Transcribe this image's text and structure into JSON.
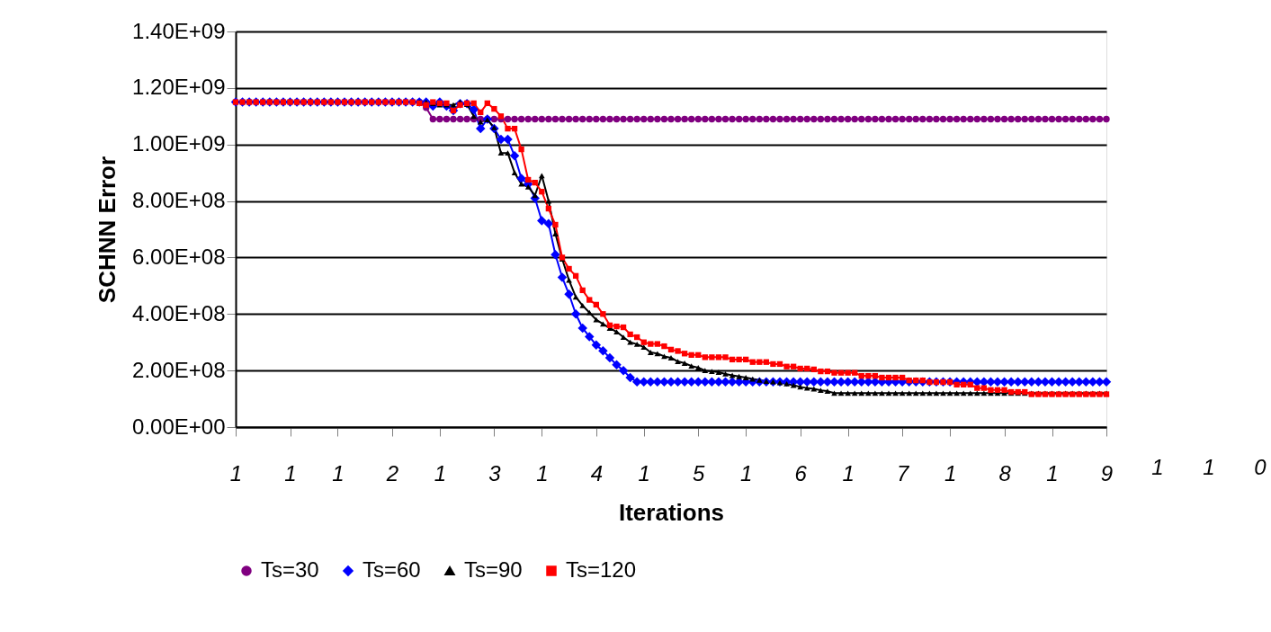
{
  "chart_data": {
    "type": "line",
    "xlabel": "Iterations",
    "ylabel": "SCHNN Error",
    "categories": [
      "1",
      null,
      null,
      null,
      null,
      null,
      null,
      null,
      "1",
      null,
      null,
      null,
      null,
      null,
      null,
      "1",
      null,
      null,
      null,
      null,
      null,
      null,
      null,
      "2",
      null,
      null,
      null,
      null,
      null,
      null,
      "1",
      null,
      null,
      null,
      null,
      null,
      null,
      null,
      "3",
      null,
      null,
      null,
      null,
      null,
      null,
      "1",
      null,
      null,
      null,
      null,
      null,
      null,
      null,
      "4",
      null,
      null,
      null,
      null,
      null,
      null,
      "1",
      null,
      null,
      null,
      null,
      null,
      null,
      null,
      "5",
      null,
      null,
      null,
      null,
      null,
      null,
      "1",
      null,
      null,
      null,
      null,
      null,
      null,
      null,
      "6",
      null,
      null,
      null,
      null,
      null,
      null,
      "1",
      null,
      null,
      null,
      null,
      null,
      null,
      null,
      "7",
      null,
      null,
      null,
      null,
      null,
      null,
      "1",
      null,
      null,
      null,
      null,
      null,
      null,
      null,
      "8",
      null,
      null,
      null,
      null,
      null,
      null,
      "1",
      null,
      null,
      null,
      null,
      null,
      null,
      null,
      "9"
    ],
    "series": [
      {
        "name": "Ts=30",
        "color": "#800080",
        "marker": "circle",
        "values": [
          null,
          null,
          null,
          null,
          null,
          null,
          null,
          null,
          null,
          null,
          null,
          null,
          null,
          null,
          null,
          null,
          null,
          null,
          null,
          null,
          null,
          null,
          null,
          null,
          null,
          null,
          null,
          1150000000.0,
          1130000000.0,
          1090000000.0,
          1090000000.0,
          1090000000.0,
          1090000000.0,
          1090000000.0,
          1090000000.0,
          1090000000.0,
          1090000000.0,
          1090000000.0,
          1090000000.0,
          1090000000.0,
          1090000000.0,
          1090000000.0,
          1090000000.0,
          1090000000.0,
          1090000000.0,
          1090000000.0,
          1090000000.0,
          1090000000.0,
          1090000000.0,
          1090000000.0,
          1090000000.0,
          1090000000.0,
          1090000000.0,
          1090000000.0,
          1090000000.0,
          1090000000.0,
          1090000000.0,
          1090000000.0,
          1090000000.0,
          1090000000.0,
          1090000000.0,
          1090000000.0,
          1090000000.0,
          1090000000.0,
          1090000000.0,
          1090000000.0,
          1090000000.0,
          1090000000.0,
          1090000000.0,
          1090000000.0,
          1090000000.0,
          1090000000.0,
          1090000000.0,
          1090000000.0,
          1090000000.0,
          1090000000.0,
          1090000000.0,
          1090000000.0,
          1090000000.0,
          1090000000.0,
          1090000000.0,
          1090000000.0,
          1090000000.0,
          1090000000.0,
          1090000000.0,
          1090000000.0,
          1090000000.0,
          1090000000.0,
          1090000000.0,
          1090000000.0,
          1090000000.0,
          1090000000.0,
          1090000000.0,
          1090000000.0,
          1090000000.0,
          1090000000.0,
          1090000000.0,
          1090000000.0,
          1090000000.0,
          1090000000.0,
          1090000000.0,
          1090000000.0,
          1090000000.0,
          1090000000.0,
          1090000000.0,
          1090000000.0,
          1090000000.0,
          1090000000.0,
          1090000000.0,
          1090000000.0,
          1090000000.0,
          1090000000.0,
          1090000000.0,
          1090000000.0,
          1090000000.0,
          1090000000.0,
          1090000000.0,
          1090000000.0,
          1090000000.0,
          1090000000.0,
          1090000000.0,
          1090000000.0,
          1090000000.0,
          1090000000.0,
          1090000000.0,
          1090000000.0,
          1090000000.0,
          1090000000.0,
          1090000000.0
        ]
      },
      {
        "name": "Ts=60",
        "color": "#0000ff",
        "marker": "diamond",
        "values": [
          1150000000.0,
          1150000000.0,
          1150000000.0,
          1150000000.0,
          1150000000.0,
          1150000000.0,
          1150000000.0,
          1150000000.0,
          1150000000.0,
          1150000000.0,
          1150000000.0,
          1150000000.0,
          1150000000.0,
          1150000000.0,
          1150000000.0,
          1150000000.0,
          1150000000.0,
          1150000000.0,
          1150000000.0,
          1150000000.0,
          1150000000.0,
          1150000000.0,
          1150000000.0,
          1150000000.0,
          1150000000.0,
          1150000000.0,
          1150000000.0,
          1150000000.0,
          1150000000.0,
          1136000000.0,
          1150000000.0,
          1136000000.0,
          1120000000.0,
          1145000000.0,
          1145000000.0,
          1123000000.0,
          1056000000.0,
          1090000000.0,
          1056000000.0,
          1018000000.0,
          1018000000.0,
          960000000.0,
          880000000.0,
          860000000.0,
          810000000.0,
          730000000.0,
          720000000.0,
          610000000.0,
          530000000.0,
          470000000.0,
          400000000.0,
          350000000.0,
          320000000.0,
          290000000.0,
          270000000.0,
          245000000.0,
          220000000.0,
          200000000.0,
          175000000.0,
          160000000.0,
          160000000.0,
          160000000.0,
          160000000.0,
          160000000.0,
          160000000.0,
          160000000.0,
          160000000.0,
          160000000.0,
          160000000.0,
          160000000.0,
          160000000.0,
          160000000.0,
          160000000.0,
          160000000.0,
          160000000.0,
          160000000.0,
          160000000.0,
          160000000.0,
          160000000.0,
          160000000.0,
          160000000.0,
          160000000.0,
          160000000.0,
          160000000.0,
          160000000.0,
          160000000.0,
          160000000.0,
          160000000.0,
          160000000.0,
          160000000.0,
          160000000.0,
          160000000.0,
          160000000.0,
          160000000.0,
          160000000.0,
          160000000.0,
          160000000.0,
          160000000.0,
          160000000.0,
          160000000.0,
          160000000.0,
          160000000.0,
          160000000.0,
          160000000.0,
          160000000.0,
          160000000.0,
          160000000.0,
          160000000.0,
          160000000.0,
          160000000.0,
          160000000.0,
          160000000.0,
          160000000.0,
          160000000.0,
          160000000.0,
          160000000.0,
          160000000.0,
          160000000.0,
          160000000.0,
          160000000.0,
          160000000.0,
          160000000.0,
          160000000.0,
          160000000.0,
          160000000.0,
          160000000.0,
          160000000.0,
          160000000.0,
          160000000.0
        ]
      },
      {
        "name": "Ts=90",
        "color": "#000000",
        "marker": "triangle",
        "values": [
          null,
          null,
          null,
          null,
          null,
          null,
          null,
          null,
          null,
          null,
          null,
          null,
          null,
          null,
          null,
          null,
          null,
          null,
          null,
          null,
          null,
          null,
          null,
          null,
          null,
          null,
          null,
          1150000000.0,
          1150000000.0,
          1145000000.0,
          1140000000.0,
          1140000000.0,
          1140000000.0,
          1150000000.0,
          1142000000.0,
          1100000000.0,
          1080000000.0,
          1088000000.0,
          1060000000.0,
          970000000.0,
          970000000.0,
          900000000.0,
          860000000.0,
          850000000.0,
          820000000.0,
          890000000.0,
          800000000.0,
          684000000.0,
          595000000.0,
          520000000.0,
          460000000.0,
          430000000.0,
          405000000.0,
          380000000.0,
          365000000.0,
          350000000.0,
          337000000.0,
          318000000.0,
          300000000.0,
          293000000.0,
          283000000.0,
          264000000.0,
          260000000.0,
          250000000.0,
          245000000.0,
          232000000.0,
          226000000.0,
          216000000.0,
          210000000.0,
          200000000.0,
          197000000.0,
          194000000.0,
          188000000.0,
          183000000.0,
          179000000.0,
          175000000.0,
          170000000.0,
          166000000.0,
          162000000.0,
          160000000.0,
          157000000.0,
          153000000.0,
          148000000.0,
          142000000.0,
          138000000.0,
          135000000.0,
          130000000.0,
          127000000.0,
          120000000.0,
          120000000.0,
          120000000.0,
          120000000.0,
          120000000.0,
          120000000.0,
          120000000.0,
          120000000.0,
          120000000.0,
          120000000.0,
          120000000.0,
          120000000.0,
          120000000.0,
          120000000.0,
          120000000.0,
          120000000.0,
          120000000.0,
          120000000.0,
          120000000.0,
          120000000.0,
          120000000.0,
          120000000.0,
          120000000.0,
          120000000.0,
          120000000.0,
          120000000.0,
          120000000.0,
          120000000.0,
          120000000.0,
          120000000.0,
          120000000.0,
          120000000.0,
          120000000.0,
          120000000.0,
          120000000.0,
          120000000.0,
          120000000.0,
          120000000.0,
          120000000.0,
          120000000.0,
          120000000.0
        ]
      },
      {
        "name": "Ts=120",
        "color": "#ff0000",
        "marker": "square",
        "values": [
          1150000000.0,
          1150000000.0,
          1150000000.0,
          1150000000.0,
          1150000000.0,
          1150000000.0,
          1150000000.0,
          1150000000.0,
          1150000000.0,
          1150000000.0,
          1150000000.0,
          1150000000.0,
          1150000000.0,
          1150000000.0,
          1150000000.0,
          1150000000.0,
          1150000000.0,
          1150000000.0,
          1150000000.0,
          1150000000.0,
          1150000000.0,
          1150000000.0,
          1150000000.0,
          1150000000.0,
          1150000000.0,
          1150000000.0,
          1150000000.0,
          1146000000.0,
          1140000000.0,
          1150000000.0,
          1146000000.0,
          1146000000.0,
          1120000000.0,
          1140000000.0,
          1146000000.0,
          1146000000.0,
          1114000000.0,
          1146000000.0,
          1126000000.0,
          1100000000.0,
          1056000000.0,
          1056000000.0,
          983000000.0,
          875000000.0,
          865000000.0,
          833000000.0,
          773000000.0,
          716000000.0,
          600000000.0,
          560000000.0,
          535000000.0,
          484000000.0,
          450000000.0,
          433000000.0,
          400000000.0,
          360000000.0,
          356000000.0,
          353000000.0,
          328000000.0,
          318000000.0,
          300000000.0,
          294000000.0,
          294000000.0,
          286000000.0,
          274000000.0,
          269000000.0,
          260000000.0,
          255000000.0,
          255000000.0,
          247000000.0,
          247000000.0,
          247000000.0,
          247000000.0,
          239000000.0,
          239000000.0,
          239000000.0,
          230000000.0,
          230000000.0,
          230000000.0,
          223000000.0,
          223000000.0,
          214000000.0,
          214000000.0,
          207000000.0,
          207000000.0,
          204000000.0,
          197000000.0,
          197000000.0,
          192000000.0,
          192000000.0,
          192000000.0,
          192000000.0,
          181000000.0,
          181000000.0,
          181000000.0,
          175000000.0,
          175000000.0,
          175000000.0,
          175000000.0,
          165000000.0,
          165000000.0,
          165000000.0,
          159000000.0,
          159000000.0,
          159000000.0,
          159000000.0,
          150000000.0,
          150000000.0,
          150000000.0,
          138000000.0,
          138000000.0,
          131000000.0,
          131000000.0,
          131000000.0,
          124000000.0,
          124000000.0,
          124000000.0,
          116000000.0,
          116000000.0,
          116000000.0,
          116000000.0,
          116000000.0,
          116000000.0,
          116000000.0,
          116000000.0,
          116000000.0,
          116000000.0,
          116000000.0,
          116000000.0
        ]
      }
    ],
    "ylim": [
      0,
      1400000000
    ],
    "yticks": [
      {
        "value": 0,
        "label": "0.00E+00"
      },
      {
        "value": 200000000,
        "label": "2.00E+08"
      },
      {
        "value": 400000000,
        "label": "4.00E+08"
      },
      {
        "value": 600000000,
        "label": "6.00E+08"
      },
      {
        "value": 800000000,
        "label": "8.00E+08"
      },
      {
        "value": 1000000000,
        "label": "1.00E+09"
      },
      {
        "value": 1200000000,
        "label": "1.20E+09"
      },
      {
        "value": 1400000000,
        "label": "1.40E+09"
      }
    ],
    "annotations": [
      "1",
      "1",
      "0"
    ],
    "grid": "y",
    "legend": "bottom",
    "line_style": "solid"
  }
}
